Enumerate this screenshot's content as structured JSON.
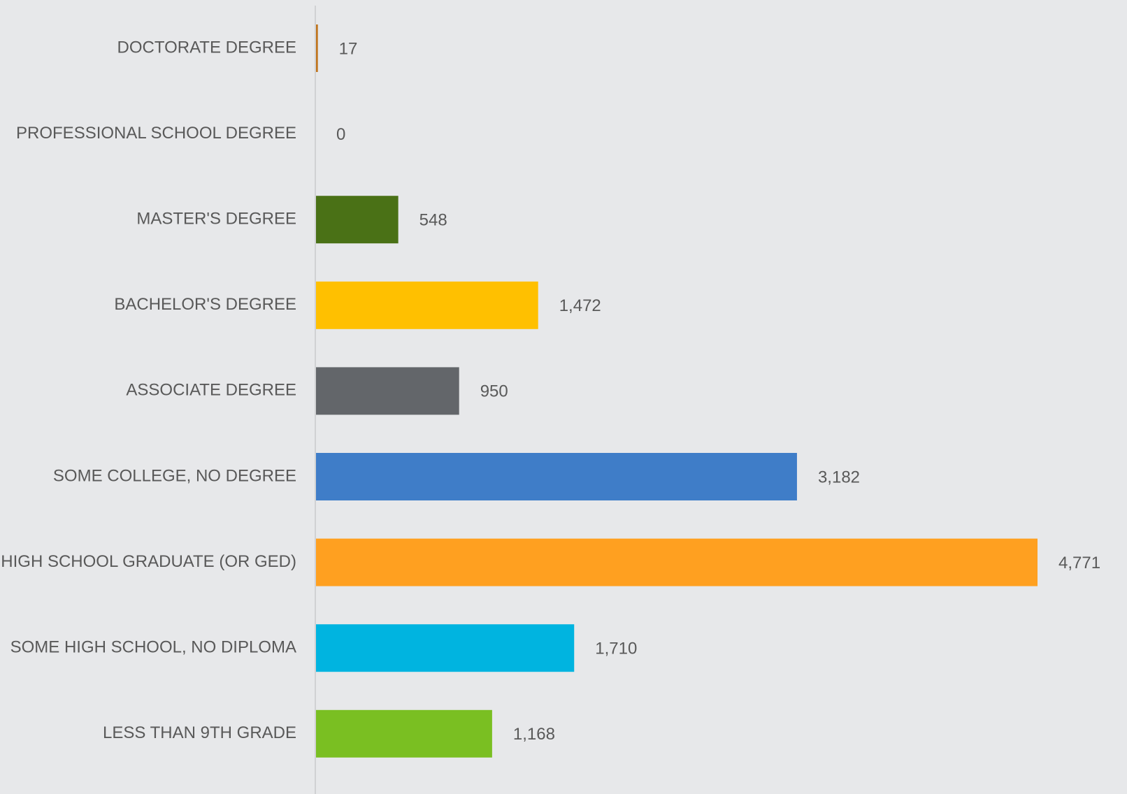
{
  "chart_data": {
    "type": "bar",
    "orientation": "horizontal",
    "categories": [
      "DOCTORATE DEGREE",
      "PROFESSIONAL SCHOOL DEGREE",
      "MASTER'S DEGREE",
      "BACHELOR'S DEGREE",
      "ASSOCIATE DEGREE",
      "SOME COLLEGE, NO DEGREE",
      "HIGH SCHOOL GRADUATE (OR GED)",
      "SOME HIGH SCHOOL, NO DIPLOMA",
      "LESS THAN 9TH GRADE"
    ],
    "values": [
      17,
      0,
      548,
      1472,
      950,
      3182,
      4771,
      1710,
      1168
    ],
    "value_labels": [
      "17",
      "0",
      "548",
      "1,472",
      "950",
      "3,182",
      "4,771",
      "1,710",
      "1,168"
    ],
    "colors": [
      "#c0741c",
      "#9e480e",
      "#4a7116",
      "#ffc000",
      "#63666a",
      "#3f7dc8",
      "#ffa020",
      "#00b4e0",
      "#7abf22"
    ]
  }
}
